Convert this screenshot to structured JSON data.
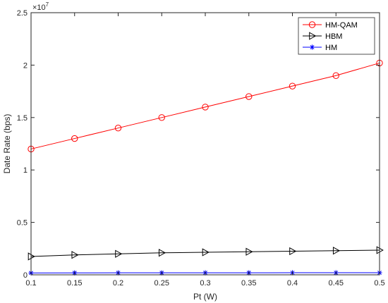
{
  "chart_data": {
    "type": "line",
    "xlabel": "Pt (W)",
    "ylabel": "Date Rate (bps)",
    "y_exponent_label": "×10",
    "y_exponent_power": "7",
    "y_scale_factor": 10000000,
    "xlim": [
      0.1,
      0.5
    ],
    "ylim": [
      0,
      25000000
    ],
    "x_ticks": [
      0.1,
      0.15,
      0.2,
      0.25,
      0.3,
      0.35,
      0.4,
      0.45,
      0.5
    ],
    "x_tick_labels": [
      "0.1",
      "0.15",
      "0.2",
      "0.25",
      "0.3",
      "0.35",
      "0.4",
      "0.45",
      "0.5"
    ],
    "y_ticks": [
      0,
      5000000,
      10000000,
      15000000,
      20000000,
      25000000
    ],
    "y_tick_labels": [
      "0",
      "0.5",
      "1",
      "1.5",
      "2",
      "2.5"
    ],
    "grid": false,
    "legend_position": "top-right",
    "x": [
      0.1,
      0.15,
      0.2,
      0.25,
      0.3,
      0.35,
      0.4,
      0.45,
      0.5
    ],
    "series": [
      {
        "name": "HM-QAM",
        "color": "#ff0000",
        "marker": "circle",
        "values": [
          12000000,
          13000000,
          14000000,
          15000000,
          16000000,
          17000000,
          18000000,
          19000000,
          20200000
        ]
      },
      {
        "name": "HBM",
        "color": "#000000",
        "marker": "triangle-right",
        "values": [
          1750000,
          1900000,
          2000000,
          2100000,
          2150000,
          2200000,
          2250000,
          2300000,
          2350000
        ]
      },
      {
        "name": "HM",
        "color": "#0000ff",
        "marker": "asterisk",
        "values": [
          180000,
          185000,
          190000,
          190000,
          195000,
          195000,
          200000,
          200000,
          200000
        ]
      }
    ]
  }
}
